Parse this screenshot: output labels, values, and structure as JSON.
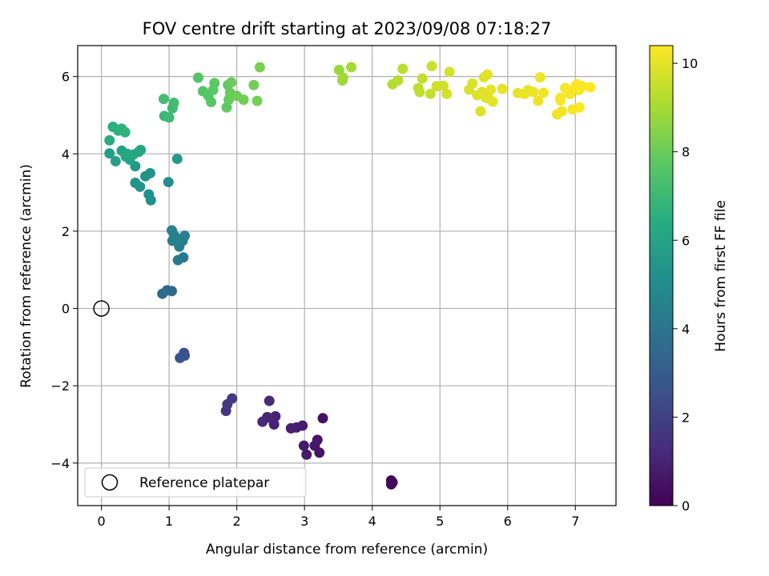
{
  "chart_data": {
    "type": "scatter",
    "title": "FOV centre drift starting at 2023/09/08 07:18:27",
    "xlabel": "Angular distance from reference (arcmin)",
    "ylabel": "Rotation from reference (arcmin)",
    "xlim": [
      -0.35,
      7.6
    ],
    "ylim": [
      -5.1,
      6.8
    ],
    "xticks": [
      "0",
      "1",
      "2",
      "3",
      "4",
      "5",
      "6",
      "7"
    ],
    "yticks": [
      "−4",
      "−2",
      "0",
      "2",
      "4",
      "6"
    ],
    "grid": true,
    "legend": {
      "position": "lower-left",
      "entries": [
        "Reference platepar"
      ]
    },
    "reference_point": {
      "x": 0,
      "y": 0
    },
    "colorbar": {
      "label": "Hours from first FF file",
      "range": [
        0,
        10.4
      ],
      "ticks": [
        "0",
        "2",
        "4",
        "6",
        "8",
        "10"
      ],
      "colormap": "viridis"
    },
    "points": [
      [
        4.28,
        -4.45,
        0.05
      ],
      [
        4.29,
        -4.5,
        0.1
      ],
      [
        4.28,
        -4.55,
        0.15
      ],
      [
        4.3,
        -4.5,
        0.2
      ],
      [
        3.27,
        -2.84,
        0.5
      ],
      [
        3.22,
        -3.73,
        0.55
      ],
      [
        3.19,
        -3.4,
        0.6
      ],
      [
        3.15,
        -3.55,
        0.65
      ],
      [
        3.03,
        -3.78,
        0.7
      ],
      [
        2.99,
        -3.55,
        0.75
      ],
      [
        2.97,
        -3.03,
        0.8
      ],
      [
        2.88,
        -3.08,
        0.85
      ],
      [
        2.8,
        -3.1,
        0.9
      ],
      [
        2.57,
        -2.79,
        0.95
      ],
      [
        2.55,
        -3.0,
        1.0
      ],
      [
        2.52,
        -2.86,
        1.05
      ],
      [
        2.45,
        -2.81,
        1.1
      ],
      [
        2.38,
        -2.93,
        1.15
      ],
      [
        2.48,
        -2.39,
        1.2
      ],
      [
        1.84,
        -2.65,
        1.7
      ],
      [
        1.86,
        -2.48,
        1.75
      ],
      [
        1.93,
        -2.33,
        1.8
      ],
      [
        1.22,
        -1.15,
        2.6
      ],
      [
        1.23,
        -1.22,
        2.65
      ],
      [
        1.16,
        -1.28,
        2.7
      ],
      [
        0.97,
        0.47,
        3.5
      ],
      [
        1.04,
        0.45,
        3.55
      ],
      [
        0.9,
        0.38,
        3.6
      ],
      [
        1.21,
        1.32,
        4.2
      ],
      [
        1.13,
        1.25,
        4.25
      ],
      [
        1.2,
        1.75,
        4.3
      ],
      [
        1.15,
        1.6,
        4.35
      ],
      [
        1.05,
        1.75,
        4.4
      ],
      [
        1.23,
        1.88,
        4.45
      ],
      [
        1.08,
        1.88,
        4.5
      ],
      [
        1.04,
        2.02,
        4.55
      ],
      [
        1.1,
        1.75,
        4.6
      ],
      [
        0.99,
        3.27,
        5.1
      ],
      [
        0.73,
        2.8,
        5.15
      ],
      [
        0.7,
        2.95,
        5.2
      ],
      [
        0.72,
        3.5,
        5.25
      ],
      [
        0.65,
        3.42,
        5.3
      ],
      [
        0.57,
        3.15,
        5.35
      ],
      [
        0.5,
        3.25,
        5.4
      ],
      [
        0.5,
        3.68,
        5.45
      ],
      [
        1.12,
        3.87,
        5.5
      ],
      [
        0.12,
        4.01,
        5.8
      ],
      [
        0.21,
        3.81,
        5.85
      ],
      [
        0.3,
        4.08,
        5.9
      ],
      [
        0.36,
        3.93,
        5.95
      ],
      [
        0.42,
        3.85,
        6.0
      ],
      [
        0.47,
        3.98,
        6.05
      ],
      [
        0.55,
        4.05,
        6.1
      ],
      [
        0.58,
        4.1,
        6.15
      ],
      [
        0.38,
        4.0,
        6.2
      ],
      [
        0.12,
        4.35,
        6.5
      ],
      [
        0.17,
        4.7,
        6.55
      ],
      [
        0.25,
        4.6,
        6.6
      ],
      [
        0.3,
        4.65,
        6.65
      ],
      [
        0.35,
        4.56,
        6.7
      ],
      [
        0.93,
        4.98,
        7.0
      ],
      [
        1.0,
        4.94,
        7.05
      ],
      [
        1.05,
        5.18,
        7.1
      ],
      [
        1.07,
        5.32,
        7.15
      ],
      [
        0.92,
        5.42,
        7.2
      ],
      [
        1.43,
        5.97,
        7.5
      ],
      [
        1.5,
        5.62,
        7.55
      ],
      [
        1.58,
        5.5,
        7.6
      ],
      [
        1.62,
        5.34,
        7.65
      ],
      [
        1.65,
        5.65,
        7.7
      ],
      [
        1.67,
        5.83,
        7.75
      ],
      [
        1.85,
        5.2,
        7.8
      ],
      [
        1.87,
        5.78,
        7.85
      ],
      [
        1.88,
        5.4,
        7.9
      ],
      [
        1.9,
        5.58,
        7.95
      ],
      [
        1.92,
        5.85,
        8.0
      ],
      [
        2.0,
        5.5,
        8.05
      ],
      [
        2.1,
        5.4,
        8.1
      ],
      [
        2.25,
        5.78,
        8.15
      ],
      [
        2.3,
        5.37,
        8.2
      ],
      [
        2.34,
        6.24,
        8.25
      ],
      [
        3.51,
        6.17,
        8.8
      ],
      [
        3.56,
        5.9,
        8.85
      ],
      [
        3.57,
        5.97,
        8.9
      ],
      [
        3.69,
        6.24,
        8.95
      ],
      [
        4.3,
        5.8,
        9.2
      ],
      [
        4.38,
        5.9,
        9.25
      ],
      [
        4.45,
        6.2,
        9.3
      ],
      [
        4.68,
        5.7,
        9.35
      ],
      [
        4.7,
        5.6,
        9.4
      ],
      [
        4.74,
        5.95,
        9.45
      ],
      [
        4.86,
        5.55,
        9.5
      ],
      [
        4.88,
        6.27,
        9.55
      ],
      [
        4.95,
        5.75,
        9.6
      ],
      [
        5.05,
        5.76,
        9.65
      ],
      [
        5.1,
        5.55,
        9.7
      ],
      [
        5.14,
        6.12,
        9.75
      ],
      [
        5.43,
        5.66,
        9.8
      ],
      [
        5.48,
        5.82,
        9.82
      ],
      [
        5.55,
        5.52,
        9.84
      ],
      [
        5.6,
        5.1,
        9.86
      ],
      [
        5.62,
        5.6,
        9.88
      ],
      [
        5.65,
        5.98,
        9.9
      ],
      [
        5.68,
        5.45,
        9.92
      ],
      [
        5.7,
        6.05,
        9.94
      ],
      [
        5.73,
        5.42,
        9.96
      ],
      [
        5.75,
        5.66,
        9.98
      ],
      [
        5.78,
        5.35,
        10.0
      ],
      [
        5.92,
        5.68,
        10.02
      ],
      [
        6.15,
        5.57,
        10.04
      ],
      [
        6.25,
        5.55,
        10.06
      ],
      [
        6.3,
        5.65,
        10.08
      ],
      [
        6.38,
        5.6,
        10.1
      ],
      [
        6.45,
        5.37,
        10.12
      ],
      [
        6.48,
        5.98,
        10.14
      ],
      [
        6.53,
        5.58,
        10.16
      ],
      [
        6.73,
        5.02,
        10.2
      ],
      [
        6.8,
        5.1,
        10.22
      ],
      [
        6.78,
        5.45,
        10.24
      ],
      [
        6.85,
        5.7,
        10.26
      ],
      [
        6.92,
        5.55,
        10.28
      ],
      [
        6.96,
        5.15,
        10.3
      ],
      [
        7.0,
        5.75,
        10.32
      ],
      [
        7.05,
        5.65,
        10.34
      ],
      [
        7.06,
        5.2,
        10.36
      ],
      [
        7.1,
        5.75,
        10.38
      ],
      [
        7.02,
        5.8,
        10.4
      ],
      [
        7.22,
        5.72,
        10.42
      ],
      [
        6.78,
        5.38,
        10.44
      ]
    ]
  }
}
